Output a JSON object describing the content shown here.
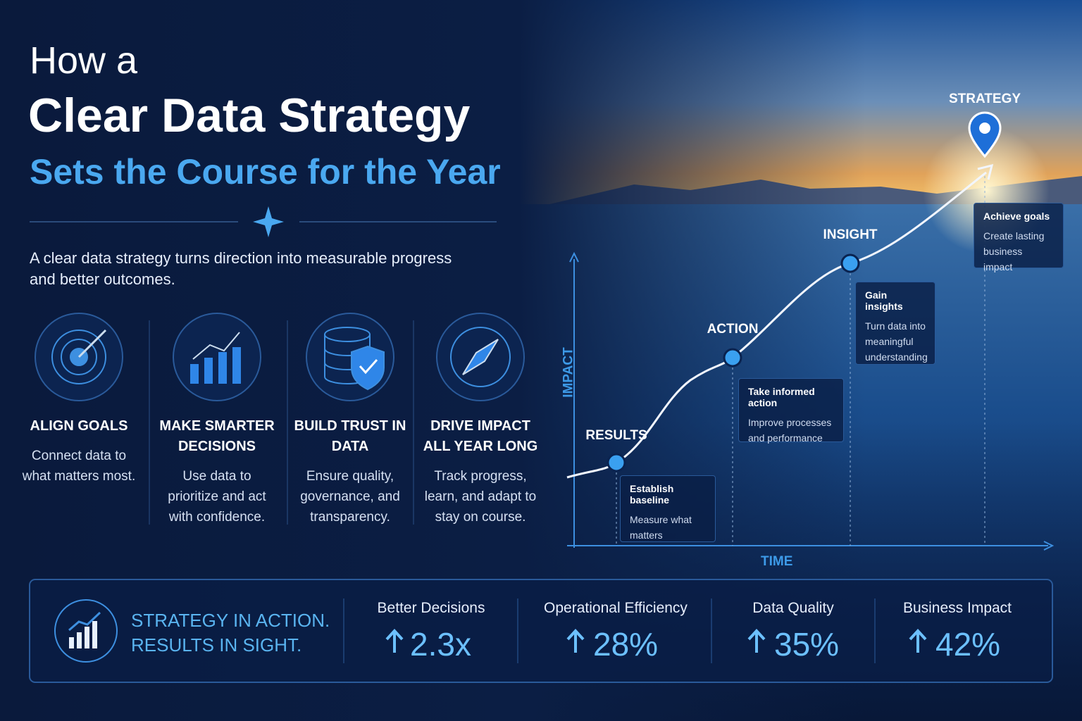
{
  "header": {
    "line1": "How a",
    "line2": "Clear Data Strategy",
    "line3": "Sets the Course for the Year"
  },
  "intro": "A clear data strategy turns direction into measurable progress and better outcomes.",
  "pillars": [
    {
      "title": "ALIGN GOALS",
      "text": "Connect data to what matters most."
    },
    {
      "title": "MAKE SMARTER DECISIONS",
      "text": "Use data to prioritize and act with confidence."
    },
    {
      "title": "BUILD TRUST IN DATA",
      "text": "Ensure quality, governance, and transparency."
    },
    {
      "title": "DRIVE IMPACT ALL YEAR LONG",
      "text": "Track progress, learn, and adapt to stay on course."
    }
  ],
  "journey": {
    "y_axis": "IMPACT",
    "x_axis": "TIME",
    "milestones": [
      {
        "label": "RESULTS",
        "card_title": "Establish baseline",
        "card_text": "Measure what matters"
      },
      {
        "label": "ACTION",
        "card_title": "Take informed action",
        "card_text": "Improve processes and performance"
      },
      {
        "label": "INSIGHT",
        "card_title": "Gain insights",
        "card_text": "Turn data into meaningful understanding"
      },
      {
        "label": "STRATEGY",
        "card_title": "Achieve goals",
        "card_text": "Create lasting business impact"
      }
    ]
  },
  "banner": {
    "tagline_1": "STRATEGY IN ACTION.",
    "tagline_2": "RESULTS IN SIGHT.",
    "metrics": [
      {
        "label": "Better Decisions",
        "value": "2.3x"
      },
      {
        "label": "Operational Efficiency",
        "value": "28%"
      },
      {
        "label": "Data Quality",
        "value": "35%"
      },
      {
        "label": "Business Impact",
        "value": "42%"
      }
    ]
  }
}
